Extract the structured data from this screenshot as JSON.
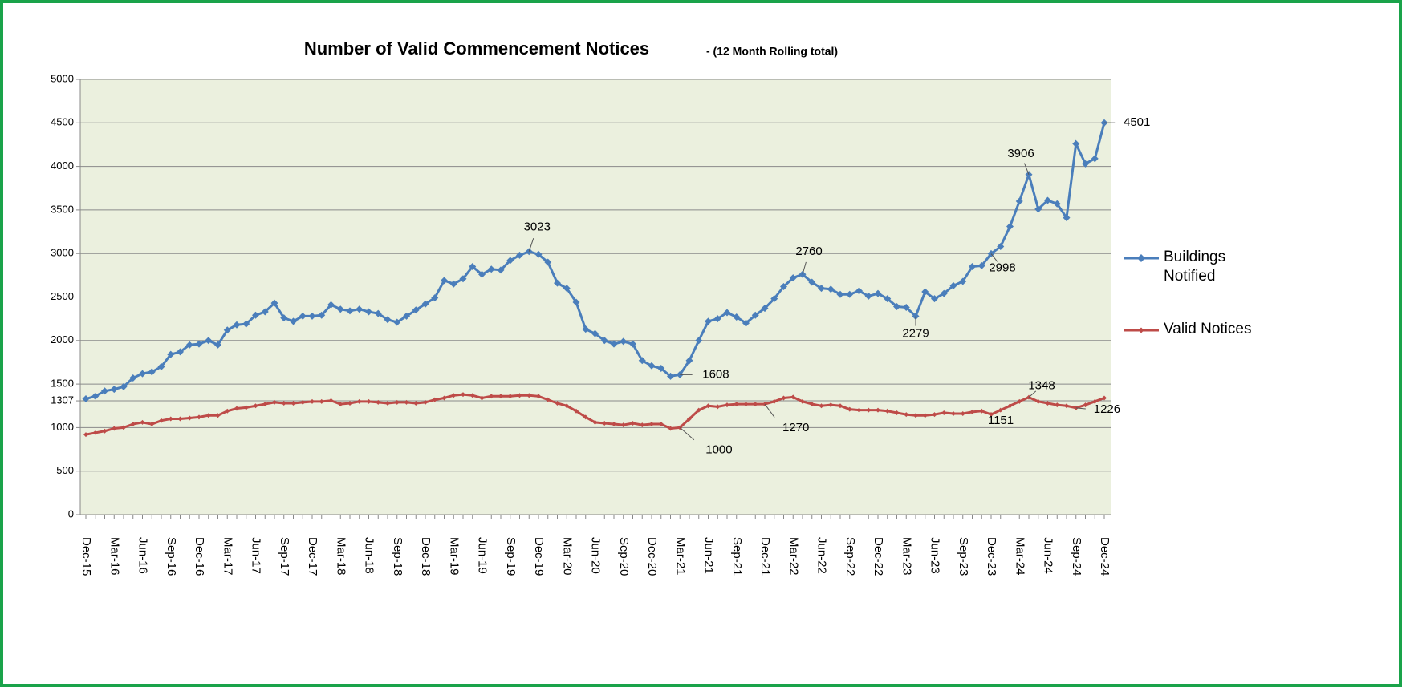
{
  "chart_data": {
    "type": "line",
    "title": "Number of Valid Commencement Notices",
    "subtitle": "-   (12 Month Rolling total)",
    "categories": [
      "Dec-15",
      null,
      null,
      "Mar-16",
      null,
      null,
      "Jun-16",
      null,
      null,
      "Sep-16",
      null,
      null,
      "Dec-16",
      null,
      null,
      "Mar-17",
      null,
      null,
      "Jun-17",
      null,
      null,
      "Sep-17",
      null,
      null,
      "Dec-17",
      null,
      null,
      "Mar-18",
      null,
      null,
      "Jun-18",
      null,
      null,
      "Sep-18",
      null,
      null,
      "Dec-18",
      null,
      null,
      "Mar-19",
      null,
      null,
      "Jun-19",
      null,
      null,
      "Sep-19",
      null,
      null,
      "Dec-19",
      null,
      null,
      "Mar-20",
      null,
      null,
      "Jun-20",
      null,
      null,
      "Sep-20",
      null,
      null,
      "Dec-20",
      null,
      null,
      "Mar-21",
      null,
      null,
      "Jun-21",
      null,
      null,
      "Sep-21",
      null,
      null,
      "Dec-21",
      null,
      null,
      "Mar-22",
      null,
      null,
      "Jun-22",
      null,
      null,
      "Sep-22",
      null,
      null,
      "Dec-22",
      null,
      null,
      "Mar-23",
      null,
      null,
      "Jun-23",
      null,
      null,
      "Sep-23",
      null,
      null,
      "Dec-23",
      null,
      null,
      "Mar-24",
      null,
      null,
      "Jun-24",
      null,
      null,
      "Sep-24",
      null,
      null,
      "Dec-24"
    ],
    "series": [
      {
        "name": "Buildings Notified",
        "color": "#4a7ebb",
        "values": [
          1330,
          1360,
          1420,
          1440,
          1470,
          1570,
          1620,
          1640,
          1700,
          1840,
          1870,
          1950,
          1960,
          2000,
          1950,
          2120,
          2180,
          2190,
          2290,
          2330,
          2430,
          2260,
          2220,
          2280,
          2280,
          2290,
          2410,
          2360,
          2340,
          2360,
          2330,
          2310,
          2240,
          2210,
          2280,
          2350,
          2420,
          2490,
          2690,
          2650,
          2710,
          2850,
          2760,
          2820,
          2810,
          2920,
          2980,
          3023,
          2990,
          2900,
          2660,
          2600,
          2440,
          2130,
          2080,
          2000,
          1960,
          1990,
          1960,
          1770,
          1710,
          1680,
          1590,
          1608,
          1770,
          2000,
          2220,
          2250,
          2320,
          2270,
          2200,
          2290,
          2370,
          2480,
          2620,
          2720,
          2760,
          2670,
          2600,
          2590,
          2530,
          2530,
          2570,
          2510,
          2540,
          2480,
          2390,
          2380,
          2279,
          2560,
          2480,
          2540,
          2630,
          2680,
          2850,
          2860,
          2998,
          3080,
          3310,
          3600,
          3906,
          3510,
          3610,
          3570,
          3410,
          4260,
          4030,
          4090,
          4501
        ]
      },
      {
        "name": "Valid Notices",
        "color": "#be4b48",
        "values": [
          920,
          940,
          960,
          990,
          1000,
          1040,
          1060,
          1040,
          1080,
          1100,
          1100,
          1110,
          1120,
          1140,
          1140,
          1190,
          1220,
          1230,
          1250,
          1270,
          1290,
          1280,
          1280,
          1290,
          1300,
          1300,
          1310,
          1270,
          1280,
          1300,
          1300,
          1290,
          1280,
          1290,
          1290,
          1280,
          1290,
          1320,
          1340,
          1370,
          1380,
          1370,
          1340,
          1360,
          1360,
          1360,
          1370,
          1370,
          1360,
          1320,
          1280,
          1250,
          1190,
          1120,
          1060,
          1050,
          1040,
          1030,
          1050,
          1030,
          1040,
          1040,
          990,
          1000,
          1100,
          1200,
          1250,
          1240,
          1260,
          1270,
          1270,
          1270,
          1270,
          1300,
          1340,
          1350,
          1300,
          1270,
          1250,
          1260,
          1250,
          1210,
          1200,
          1200,
          1200,
          1190,
          1170,
          1150,
          1140,
          1140,
          1150,
          1170,
          1160,
          1160,
          1180,
          1190,
          1151,
          1200,
          1250,
          1300,
          1348,
          1300,
          1280,
          1260,
          1250,
          1226,
          1260,
          1300,
          1340
        ]
      }
    ],
    "ylim": [
      0,
      5000
    ],
    "yticks": [
      0,
      500,
      1000,
      1307,
      1500,
      2000,
      2500,
      3000,
      3500,
      4000,
      4500,
      5000
    ],
    "grid": true,
    "legend": "right",
    "plot_background": "#ebf0de"
  }
}
